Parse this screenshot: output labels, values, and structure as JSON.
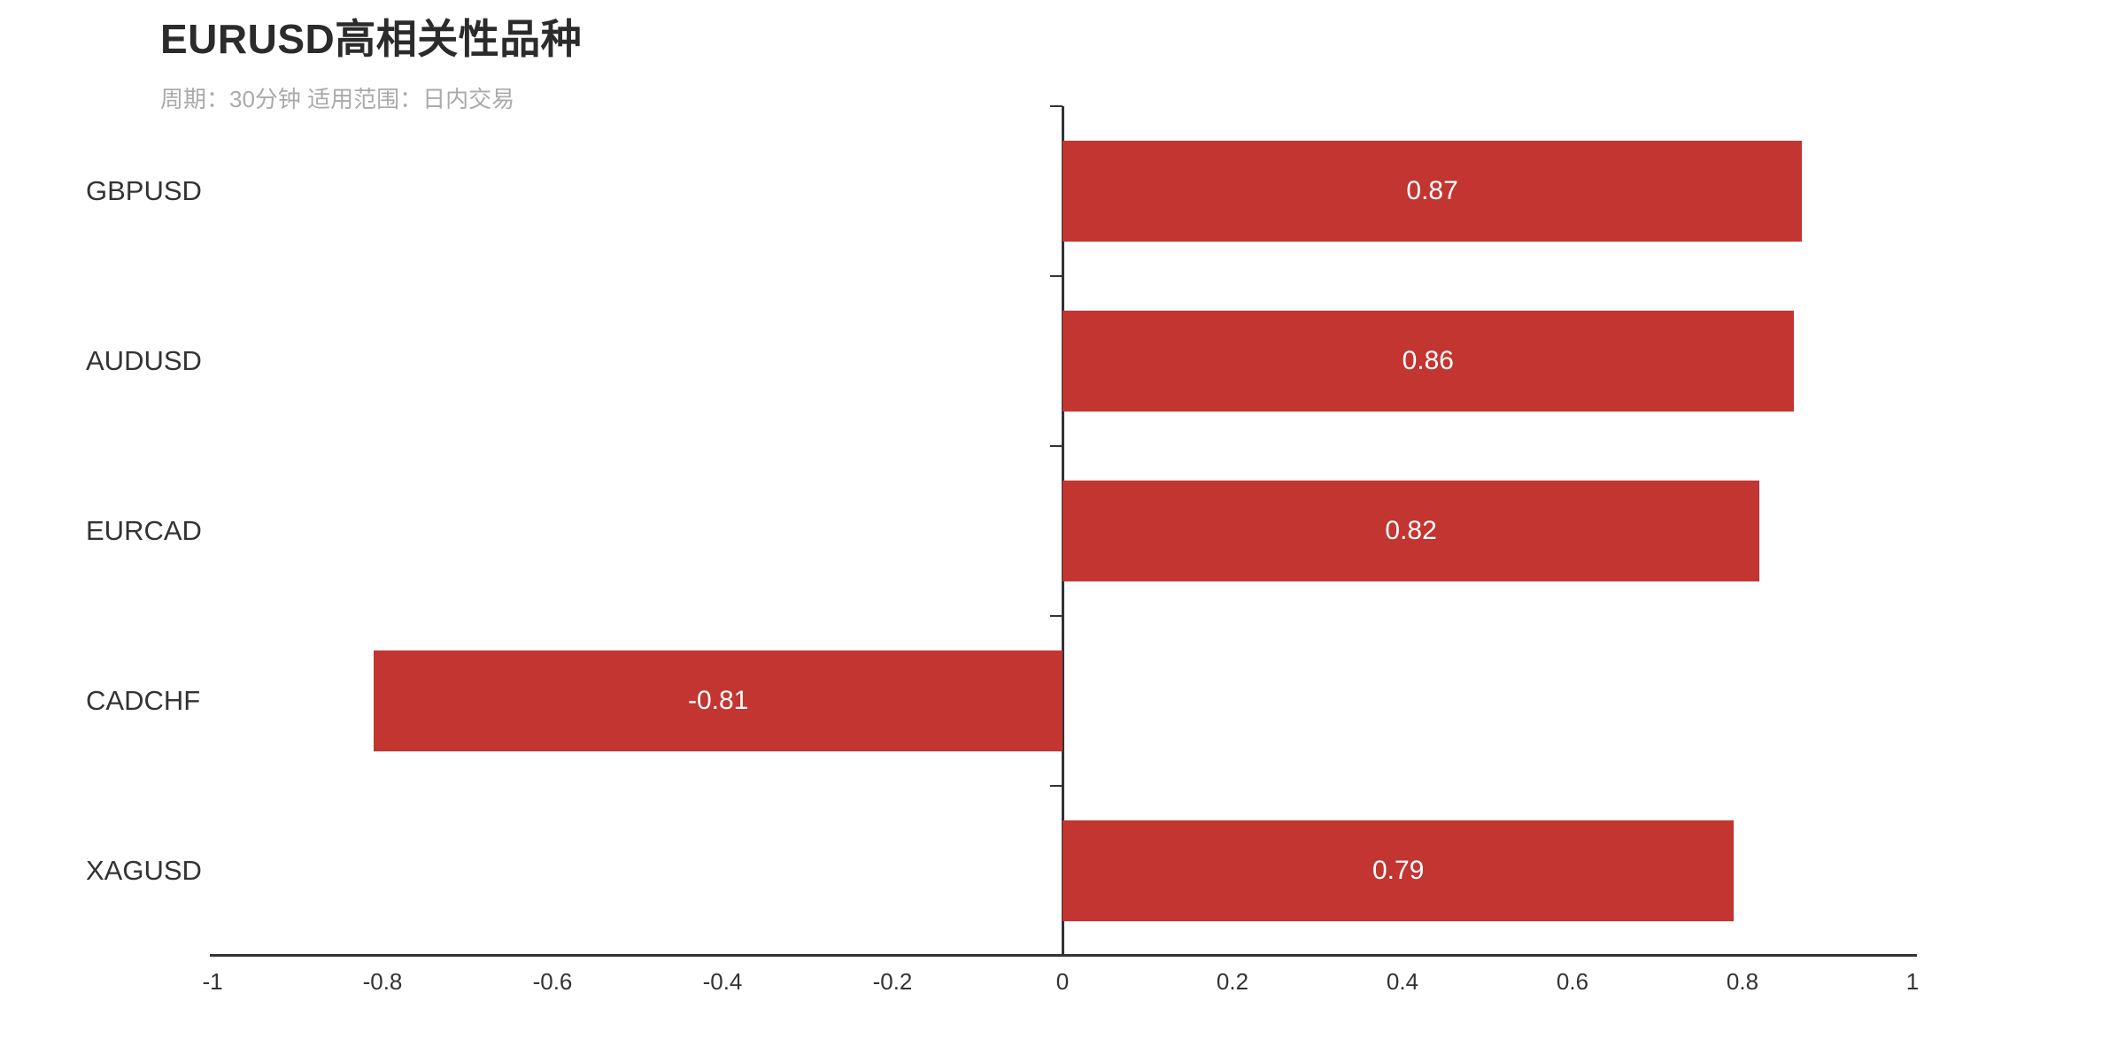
{
  "chart": {
    "title": "EURUSD高相关性品种",
    "subtitle": "周期：30分钟 适用范围：日内交易",
    "colors": {
      "bar": "#c23531",
      "bar_label": "#ffffff",
      "axis": "#333333",
      "title": "#2b2b2b",
      "subtitle": "#aaaaaa",
      "background": "#ffffff"
    }
  },
  "chart_data": {
    "type": "bar",
    "orientation": "horizontal",
    "title": "EURUSD高相关性品种",
    "subtitle": "周期：30分钟 适用范围：日内交易",
    "categories": [
      "GBPUSD",
      "AUDUSD",
      "EURCAD",
      "CADCHF",
      "XAGUSD"
    ],
    "values": [
      0.87,
      0.86,
      0.82,
      -0.81,
      0.79
    ],
    "bar_labels": [
      "0.87",
      "0.86",
      "0.82",
      "-0.81",
      "0.79"
    ],
    "bar_label_position": "inside-center",
    "xlabel": "",
    "ylabel": "",
    "xlim": [
      -1,
      1
    ],
    "x_ticks": [
      -1,
      -0.8,
      -0.6,
      -0.4,
      -0.2,
      0,
      0.2,
      0.4,
      0.6,
      0.8,
      1
    ],
    "x_tick_labels": [
      "-1",
      "-0.8",
      "-0.6",
      "-0.4",
      "-0.2",
      "0",
      "0.2",
      "0.4",
      "0.6",
      "0.8",
      "1"
    ],
    "grid": false,
    "legend": false,
    "category_axis_line_on_zero": true
  }
}
